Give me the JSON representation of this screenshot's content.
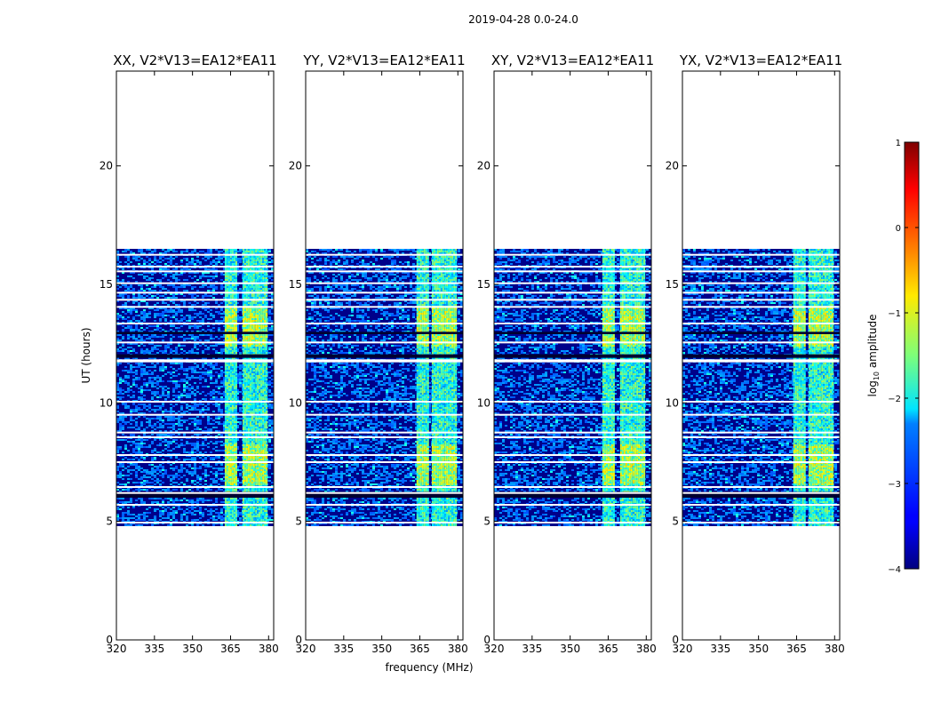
{
  "figure": {
    "suptitle": "2019-04-28 0.0-24.0"
  },
  "chart_data": {
    "type": "heatmap",
    "title": "2019-04-28 0.0-24.0",
    "xlabel": "frequency (MHz)",
    "ylabel": "UT (hours)",
    "xlim": [
      320,
      382
    ],
    "ylim": [
      0,
      24
    ],
    "xticks": [
      320,
      335,
      350,
      365,
      380
    ],
    "yticks": [
      0,
      5,
      10,
      15,
      20
    ],
    "panels": [
      {
        "title": "XX, V2*V13=EA12*EA11",
        "bright_columns": [
          365,
          372,
          377
        ]
      },
      {
        "title": "YY, V2*V13=EA12*EA11",
        "bright_columns": [
          366,
          372,
          377
        ]
      },
      {
        "title": "XY, V2*V13=EA12*EA11",
        "bright_columns": [
          365,
          372,
          377
        ]
      },
      {
        "title": "YX, V2*V13=EA12*EA11",
        "bright_columns": [
          366,
          372,
          377
        ]
      }
    ],
    "data_extent": {
      "freq_range": [
        320,
        382
      ],
      "time_range": [
        4.8,
        16.5
      ]
    },
    "band": {
      "freq_min": 362,
      "freq_max": 380
    },
    "gaps_hours": [
      4.95,
      5.7,
      6.2,
      6.45,
      7.5,
      7.8,
      8.55,
      8.75,
      9.5,
      10.05,
      11.75,
      11.8,
      12.55,
      13.35,
      14.05,
      14.35,
      14.65,
      15.05,
      15.55,
      15.75,
      16.25
    ],
    "dark_bands_hours": [
      [
        6.0,
        6.25
      ],
      [
        11.9,
        12.05
      ],
      [
        12.9,
        13.0
      ]
    ],
    "colorbar": {
      "label": "log10 amplitude",
      "label_main": "log",
      "label_sub": "10",
      "label_rest": " amplitude",
      "range": [
        -4,
        1
      ],
      "ticks": [
        "1",
        "0",
        "−1",
        "−2",
        "−3",
        "−4"
      ],
      "colormap": "jet"
    }
  }
}
